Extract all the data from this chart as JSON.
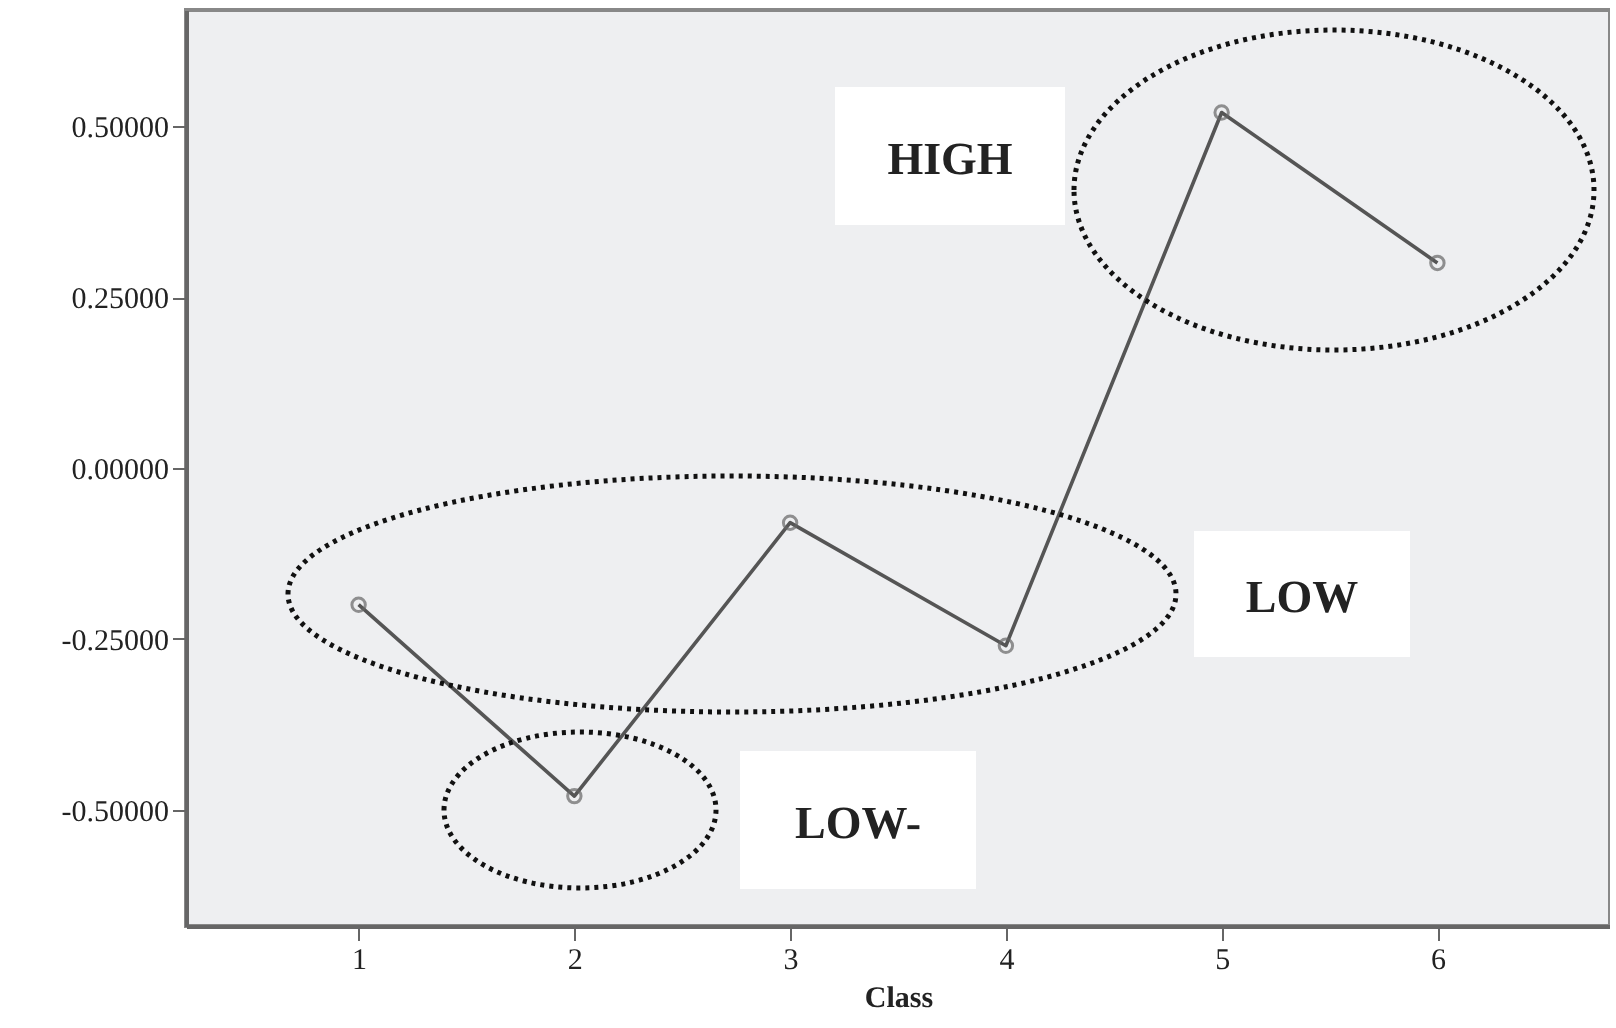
{
  "chart_data": {
    "type": "line",
    "xlabel": "Class",
    "categories": [
      "1",
      "2",
      "3",
      "4",
      "5",
      "6"
    ],
    "series": [
      {
        "color": "#555555",
        "values": [
          -0.2,
          -0.48,
          -0.08,
          -0.26,
          0.52,
          0.3
        ]
      }
    ],
    "ylim": [
      -0.67,
      0.67
    ],
    "yticks": [
      {
        "value": -0.5,
        "label": "-0.50000"
      },
      {
        "value": -0.25,
        "label": "-0.25000"
      },
      {
        "value": 0,
        "label": "0.00000"
      },
      {
        "value": 0.25,
        "label": "0.25000"
      },
      {
        "value": 0.5,
        "label": "0.50000"
      }
    ],
    "annotations": [
      "HIGH",
      "LOW",
      "LOW-"
    ],
    "marker": "circle",
    "line_style": "solid",
    "grid": false
  }
}
